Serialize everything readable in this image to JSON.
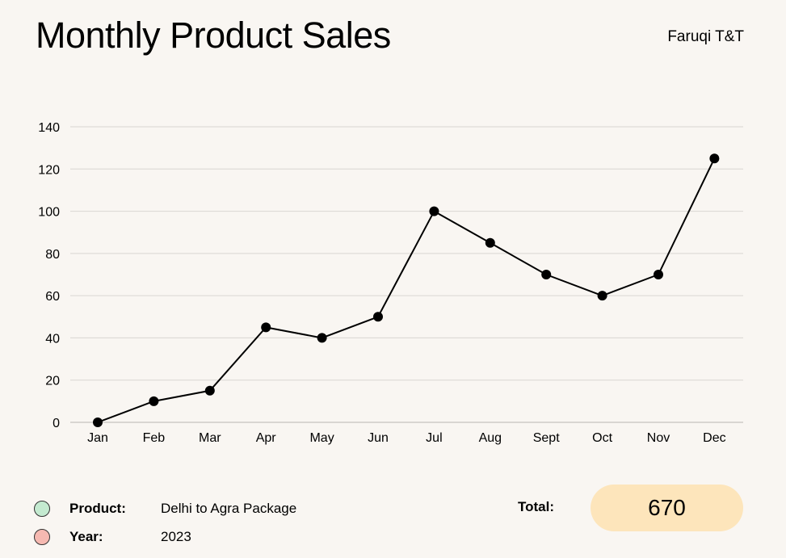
{
  "header": {
    "title": "Monthly Product Sales",
    "brand": "Faruqi T&T"
  },
  "chart_data": {
    "type": "line",
    "categories": [
      "Jan",
      "Feb",
      "Mar",
      "Apr",
      "May",
      "Jun",
      "Jul",
      "Aug",
      "Sept",
      "Oct",
      "Nov",
      "Dec"
    ],
    "series": [
      {
        "values": [
          0,
          10,
          15,
          45,
          40,
          50,
          100,
          85,
          70,
          60,
          70,
          125
        ]
      }
    ],
    "title": "Monthly Product Sales",
    "xlabel": "",
    "ylabel": "",
    "ylim": [
      0,
      140
    ],
    "yticks": [
      0,
      20,
      40,
      60,
      80,
      100,
      120,
      140
    ],
    "grid": true,
    "line_color": "#000000",
    "grid_color": "#d9d6d2"
  },
  "legend": {
    "product": {
      "label": "Product:",
      "value": "Delhi to Agra Package",
      "color": "#c4ead0"
    },
    "year": {
      "label": "Year:",
      "value": "2023",
      "color": "#f6b9b1"
    }
  },
  "summary": {
    "total_label": "Total:",
    "total_value": "670",
    "total_color": "#fde5bb"
  }
}
